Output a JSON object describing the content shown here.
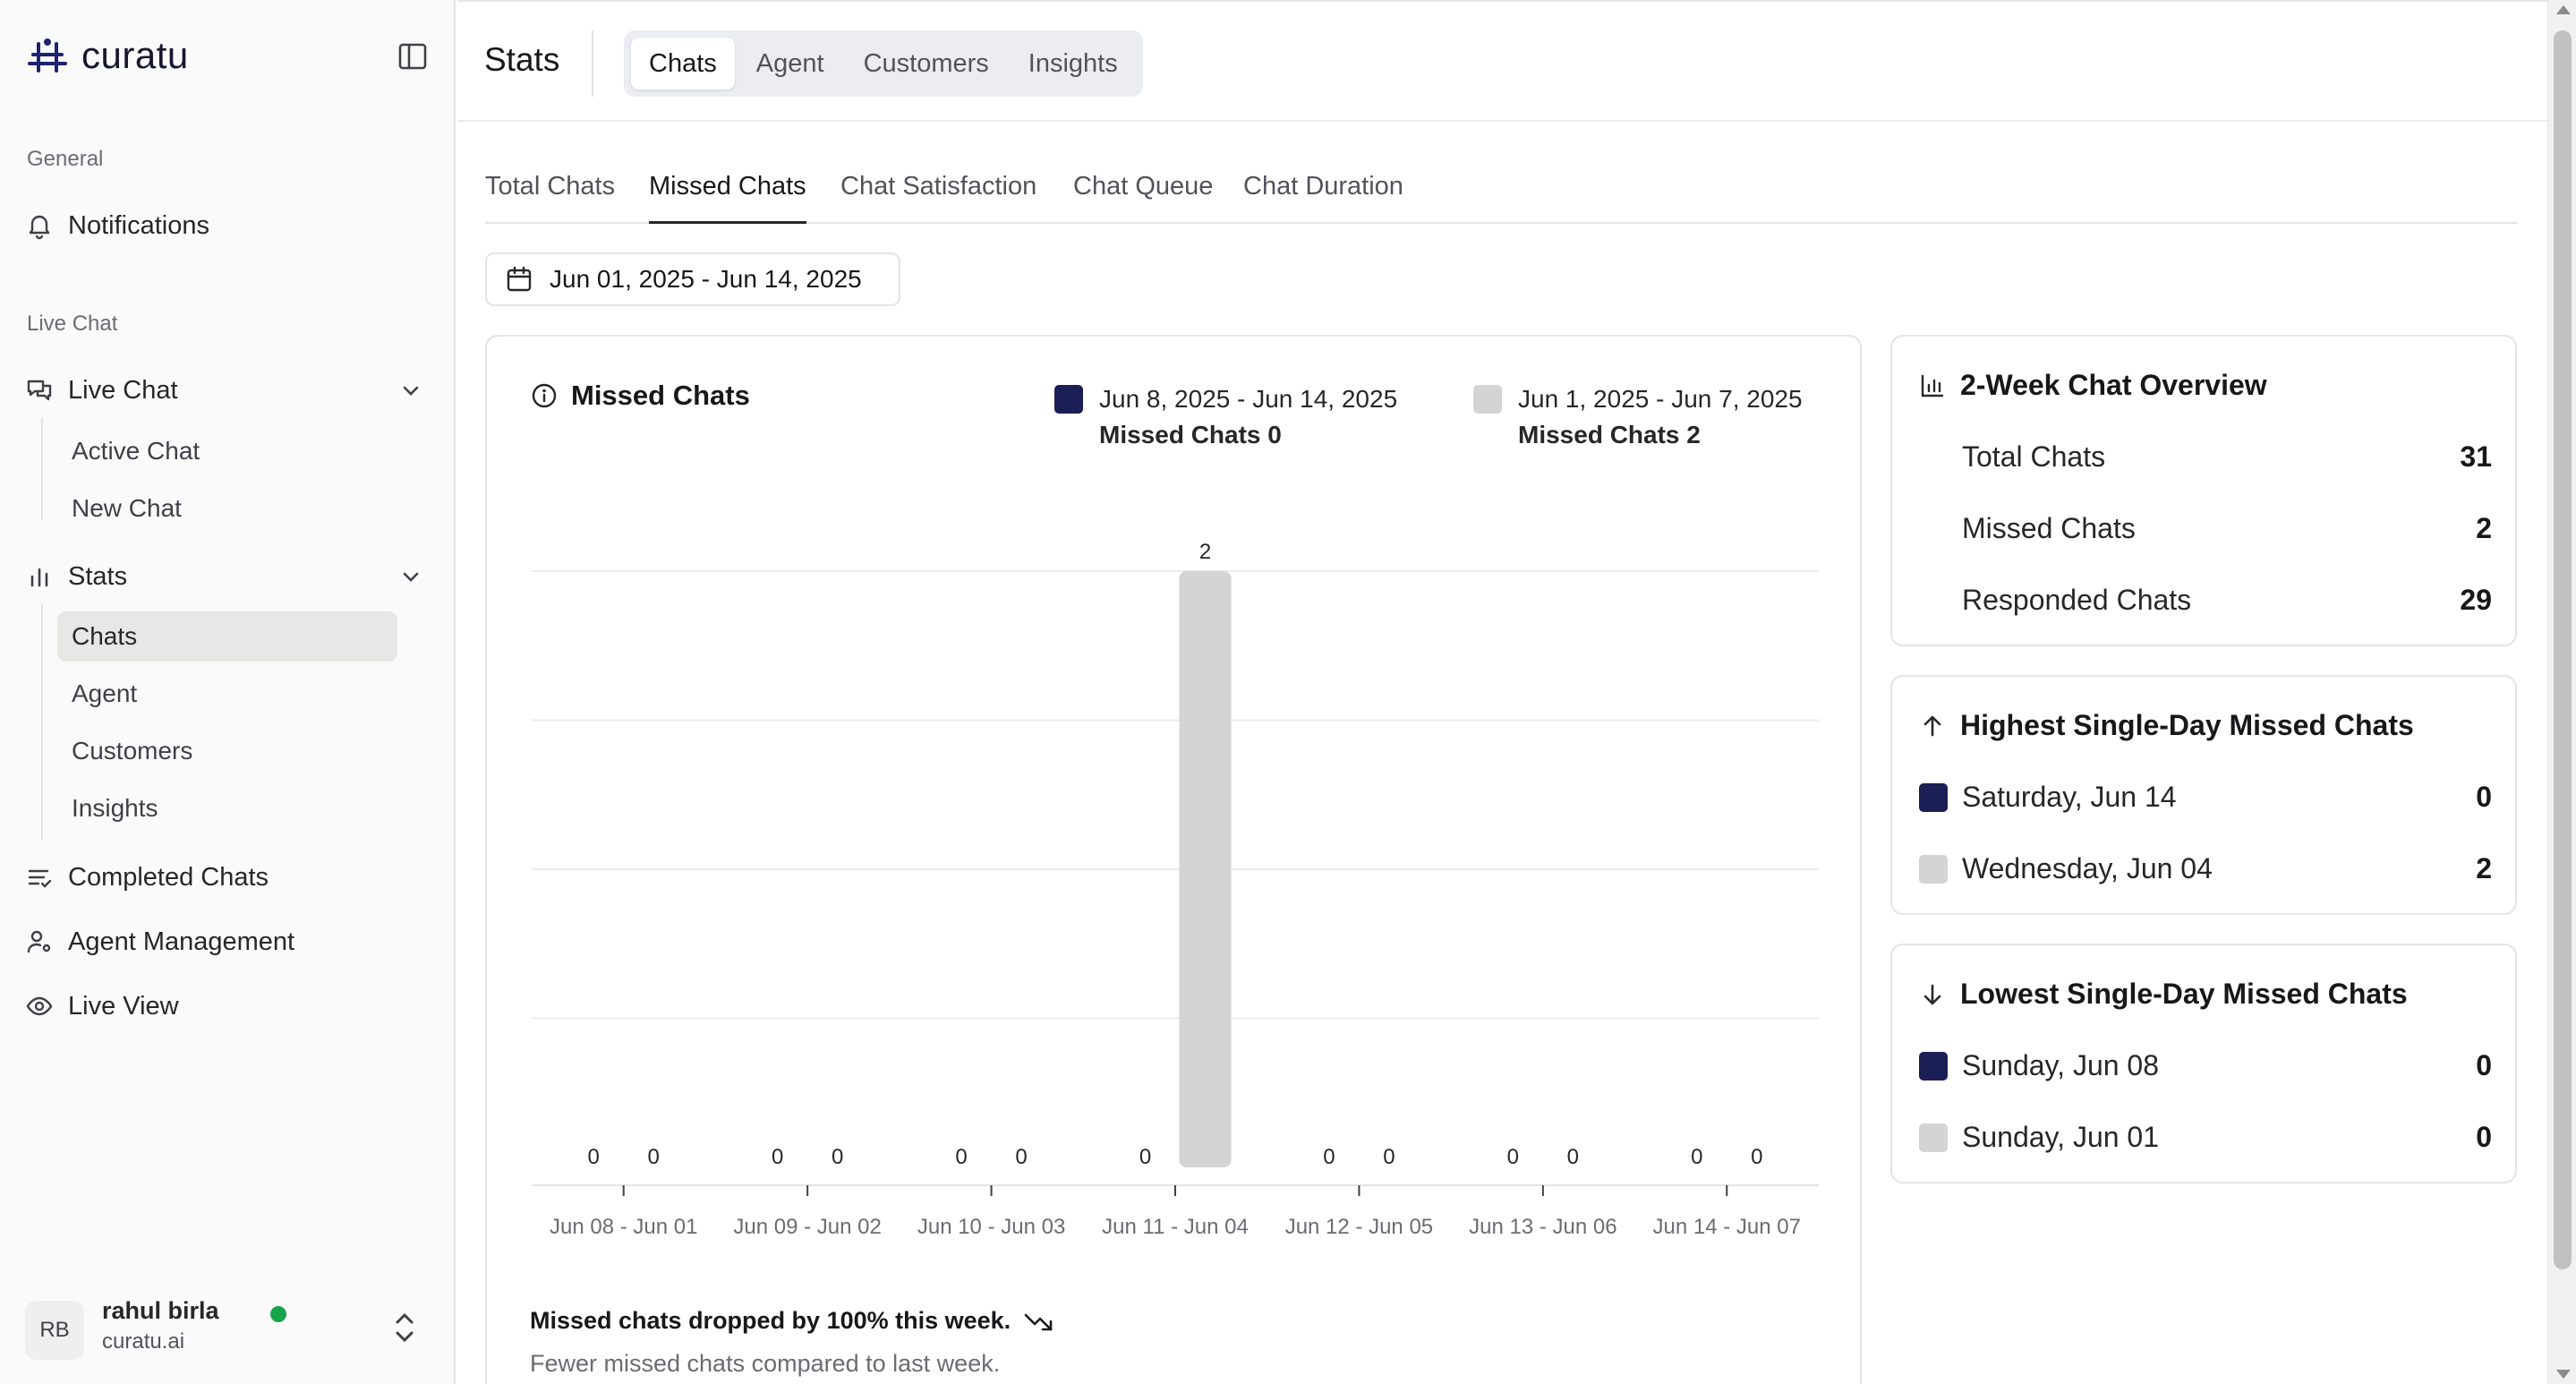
{
  "app": {
    "name": "curatu"
  },
  "sidebar": {
    "general_label": "General",
    "notifications": "Notifications",
    "live_chat_label": "Live Chat",
    "live_chat": {
      "label": "Live Chat",
      "items": [
        "Active Chat",
        "New Chat"
      ]
    },
    "stats": {
      "label": "Stats",
      "items": [
        "Chats",
        "Agent",
        "Customers",
        "Insights"
      ],
      "active": "Chats"
    },
    "completed_chats": "Completed Chats",
    "agent_management": "Agent Management",
    "live_view": "Live View"
  },
  "user": {
    "initials": "RB",
    "name": "rahul birla",
    "org": "curatu.ai",
    "status_color": "#16a34a"
  },
  "header": {
    "title": "Stats",
    "tabs": [
      "Chats",
      "Agent",
      "Customers",
      "Insights"
    ],
    "active_tab": "Chats"
  },
  "subtabs": {
    "items": [
      "Total Chats",
      "Missed Chats",
      "Chat Satisfaction",
      "Chat Queue",
      "Chat Duration"
    ],
    "active": "Missed Chats"
  },
  "date_range": {
    "value": "Jun 01, 2025 - Jun 14, 2025",
    "icon": "calendar-icon"
  },
  "colors": {
    "current_week": "#1c1f55",
    "previous_week": "#d4d4d4"
  },
  "chart_card": {
    "title": "Missed Chats",
    "legend": [
      {
        "range": "Jun 8, 2025 - Jun 14, 2025",
        "summary": "Missed Chats 0"
      },
      {
        "range": "Jun 1, 2025 - Jun 7, 2025",
        "summary": "Missed Chats 2"
      }
    ],
    "footer_title": "Missed chats dropped by 100% this week.",
    "footer_sub": "Fewer missed chats compared to last week."
  },
  "chart_data": {
    "type": "bar",
    "categories": [
      "Jun 08 - Jun 01",
      "Jun 09 - Jun 02",
      "Jun 10 - Jun 03",
      "Jun 11 - Jun 04",
      "Jun 12 - Jun 05",
      "Jun 13 - Jun 06",
      "Jun 14 - Jun 07"
    ],
    "series": [
      {
        "name": "Jun 8, 2025 - Jun 14, 2025",
        "values": [
          0,
          0,
          0,
          0,
          0,
          0,
          0
        ]
      },
      {
        "name": "Jun 1, 2025 - Jun 7, 2025",
        "values": [
          0,
          0,
          0,
          2,
          0,
          0,
          0
        ]
      }
    ],
    "ylim": [
      0,
      2
    ],
    "grid": true,
    "data_labels": true,
    "legend": "top-right"
  },
  "overview": {
    "title": "2-Week Chat Overview",
    "rows": [
      {
        "label": "Total Chats",
        "value": "31"
      },
      {
        "label": "Missed Chats",
        "value": "2"
      },
      {
        "label": "Responded Chats",
        "value": "29"
      }
    ]
  },
  "highest": {
    "title": "Highest Single-Day Missed Chats",
    "rows": [
      {
        "label": "Saturday, Jun 14",
        "value": "0"
      },
      {
        "label": "Wednesday, Jun 04",
        "value": "2"
      }
    ]
  },
  "lowest": {
    "title": "Lowest Single-Day Missed Chats",
    "rows": [
      {
        "label": "Sunday, Jun 08",
        "value": "0"
      },
      {
        "label": "Sunday, Jun 01",
        "value": "0"
      }
    ]
  }
}
